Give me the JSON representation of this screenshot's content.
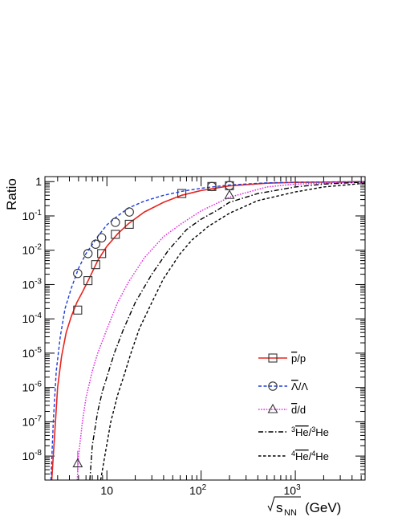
{
  "chart_data": {
    "type": "line",
    "ylabel": "Ratio",
    "xlabel": "(GeV)",
    "xlabel_sym": "s",
    "xlabel_sub": "NN",
    "xscale": "log",
    "yscale": "log",
    "xlim": [
      2.2,
      5500
    ],
    "ylim": [
      2e-09,
      1.4
    ],
    "x_ticks": [
      {
        "v": 10,
        "b": "10",
        "e": ""
      },
      {
        "v": 100,
        "b": "10",
        "e": "2"
      },
      {
        "v": 1000,
        "b": "10",
        "e": "3"
      }
    ],
    "y_ticks": [
      {
        "v": 1,
        "b": "1",
        "e": ""
      },
      {
        "v": 0.1,
        "b": "10",
        "e": "-1"
      },
      {
        "v": 0.01,
        "b": "10",
        "e": "-2"
      },
      {
        "v": 0.001,
        "b": "10",
        "e": "-3"
      },
      {
        "v": 0.0001,
        "b": "10",
        "e": "-4"
      },
      {
        "v": 1e-05,
        "b": "10",
        "e": "-5"
      },
      {
        "v": 1e-06,
        "b": "10",
        "e": "-6"
      },
      {
        "v": 1e-07,
        "b": "10",
        "e": "-7"
      },
      {
        "v": 1e-08,
        "b": "10",
        "e": "-8"
      }
    ],
    "legend_position": "bottom-right",
    "series": [
      {
        "key": "pbar",
        "color": "#e8251f",
        "dash": "",
        "width": 1.6,
        "marker": "square",
        "curve": [
          [
            2.6,
            2e-09
          ],
          [
            2.8,
            5e-08
          ],
          [
            3,
            1e-06
          ],
          [
            3.3,
            8e-06
          ],
          [
            3.7,
            4e-05
          ],
          [
            4.2,
            0.00012
          ],
          [
            4.8,
            0.0003
          ],
          [
            5.5,
            0.0006
          ],
          [
            6.5,
            0.0015
          ],
          [
            8,
            0.005
          ],
          [
            10,
            0.013
          ],
          [
            13,
            0.03
          ],
          [
            17,
            0.06
          ],
          [
            25,
            0.13
          ],
          [
            40,
            0.25
          ],
          [
            62,
            0.4
          ],
          [
            100,
            0.55
          ],
          [
            200,
            0.75
          ],
          [
            500,
            0.9
          ],
          [
            1000,
            0.95
          ],
          [
            5500,
            0.99
          ]
        ],
        "points": [
          [
            4.9,
            0.00018
          ],
          [
            6.3,
            0.0013
          ],
          [
            7.6,
            0.0038
          ],
          [
            8.8,
            0.008
          ],
          [
            12.3,
            0.029
          ],
          [
            17.3,
            0.057
          ],
          [
            62.4,
            0.45
          ],
          [
            130,
            0.72
          ],
          [
            200,
            0.76
          ]
        ]
      },
      {
        "key": "lambda",
        "color": "#1f3fd9",
        "dash": "4,2.5",
        "width": 1.4,
        "marker": "circle",
        "curve": [
          [
            2.55,
            2e-09
          ],
          [
            2.7,
            1e-07
          ],
          [
            2.9,
            3e-06
          ],
          [
            3.2,
            3e-05
          ],
          [
            3.6,
            0.0002
          ],
          [
            4.2,
            0.0008
          ],
          [
            5,
            0.003
          ],
          [
            6,
            0.008
          ],
          [
            8,
            0.025
          ],
          [
            10,
            0.055
          ],
          [
            13,
            0.1
          ],
          [
            17,
            0.17
          ],
          [
            25,
            0.27
          ],
          [
            40,
            0.4
          ],
          [
            62,
            0.52
          ],
          [
            100,
            0.64
          ],
          [
            200,
            0.8
          ],
          [
            500,
            0.92
          ],
          [
            1000,
            0.96
          ],
          [
            5500,
            0.995
          ]
        ],
        "points": [
          [
            4.9,
            0.0021
          ],
          [
            6.3,
            0.008
          ],
          [
            7.6,
            0.015
          ],
          [
            8.8,
            0.023
          ],
          [
            12.3,
            0.065
          ],
          [
            17.3,
            0.13
          ],
          [
            130,
            0.72
          ],
          [
            200,
            0.77
          ]
        ]
      },
      {
        "key": "dbar",
        "color": "#e030e0",
        "dash": "1.6,1.6",
        "width": 1.5,
        "marker": "triangle",
        "curve": [
          [
            4.85,
            2e-09
          ],
          [
            5,
            1e-08
          ],
          [
            5.5,
            1e-07
          ],
          [
            6,
            5e-07
          ],
          [
            7,
            3e-06
          ],
          [
            8,
            1e-05
          ],
          [
            10,
            5e-05
          ],
          [
            13,
            0.0003
          ],
          [
            17,
            0.0012
          ],
          [
            25,
            0.006
          ],
          [
            40,
            0.025
          ],
          [
            62,
            0.06
          ],
          [
            100,
            0.14
          ],
          [
            200,
            0.35
          ],
          [
            500,
            0.7
          ],
          [
            1000,
            0.85
          ],
          [
            5500,
            0.98
          ]
        ],
        "points": [
          [
            4.9,
            6e-09
          ],
          [
            200,
            0.4
          ]
        ]
      },
      {
        "key": "he3",
        "color": "#000000",
        "dash": "6,2.5,1.5,2.5",
        "width": 1.4,
        "marker": "",
        "curve": [
          [
            6.6,
            2e-09
          ],
          [
            7,
            2e-08
          ],
          [
            8,
            2e-07
          ],
          [
            9,
            8e-07
          ],
          [
            10,
            2e-06
          ],
          [
            12,
            1e-05
          ],
          [
            15,
            5e-05
          ],
          [
            20,
            0.0003
          ],
          [
            30,
            0.002
          ],
          [
            45,
            0.01
          ],
          [
            70,
            0.04
          ],
          [
            100,
            0.08
          ],
          [
            150,
            0.15
          ],
          [
            200,
            0.25
          ],
          [
            400,
            0.45
          ],
          [
            1000,
            0.7
          ],
          [
            2000,
            0.85
          ],
          [
            5500,
            0.97
          ]
        ],
        "points": []
      },
      {
        "key": "he4",
        "color": "#000000",
        "dash": "3.5,2.5",
        "width": 1.4,
        "marker": "",
        "curve": [
          [
            8.6,
            2e-09
          ],
          [
            9.5,
            1e-08
          ],
          [
            11,
            1e-07
          ],
          [
            13,
            6e-07
          ],
          [
            15,
            2e-06
          ],
          [
            18,
            1e-05
          ],
          [
            22,
            5e-05
          ],
          [
            30,
            0.0003
          ],
          [
            40,
            0.0015
          ],
          [
            60,
            0.008
          ],
          [
            80,
            0.02
          ],
          [
            120,
            0.05
          ],
          [
            200,
            0.12
          ],
          [
            400,
            0.28
          ],
          [
            1000,
            0.5
          ],
          [
            2000,
            0.7
          ],
          [
            5500,
            0.9
          ]
        ],
        "points": []
      }
    ],
    "legend": [
      {
        "key": "pbar",
        "bar": "p",
        "tail": "/p"
      },
      {
        "key": "lambda",
        "bar": "Λ",
        "tail": "/Λ"
      },
      {
        "key": "dbar",
        "bar": "d",
        "tail": "/d"
      },
      {
        "key": "he3",
        "pre": "3",
        "bar": "He",
        "mid": "/",
        "pre2": "3",
        "tail": "He"
      },
      {
        "key": "he4",
        "pre": "4",
        "bar": "He",
        "mid": "/",
        "pre2": "4",
        "tail": "He"
      }
    ]
  }
}
